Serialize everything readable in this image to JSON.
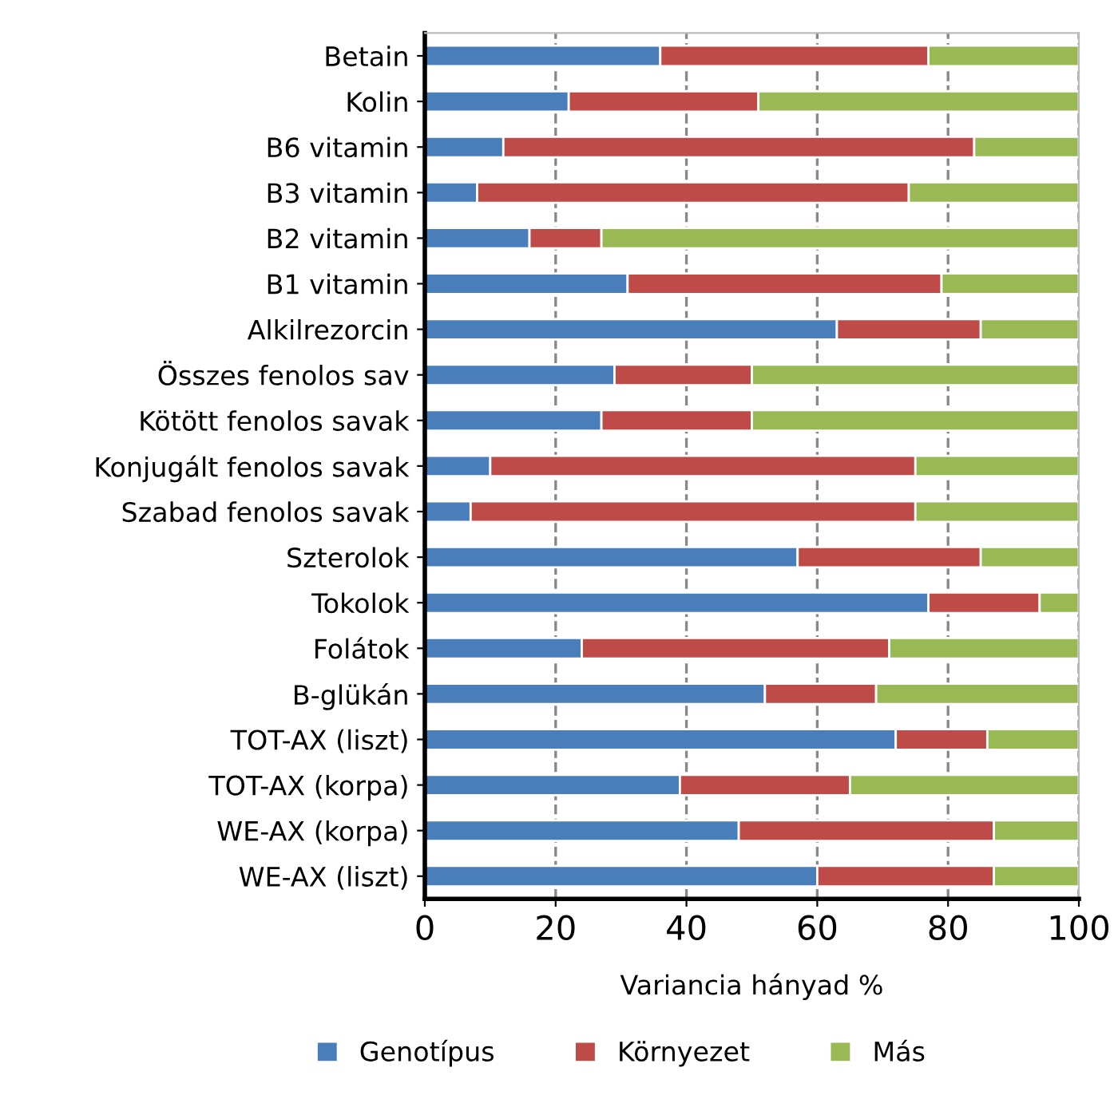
{
  "chart_data": {
    "type": "bar",
    "orientation": "horizontal",
    "stacked": true,
    "xlabel": "Variancia hányad %",
    "categories": [
      "Betain",
      "Kolin",
      "B6 vitamin",
      "B3 vitamin",
      "B2 vitamin",
      "B1 vitamin",
      "Alkilrezorcin",
      "Összes fenolos sav",
      "Kötött fenolos savak",
      "Konjugált fenolos savak",
      "Szabad fenolos savak",
      "Szterolok",
      "Tokolok",
      "Folátok",
      "B-glükán",
      "TOT-AX (liszt)",
      "TOT-AX (korpa)",
      "WE-AX (korpa)",
      "WE-AX (liszt)"
    ],
    "series": [
      {
        "name": "Genotípus",
        "color": "#4a7ebb",
        "values": [
          36,
          22,
          12,
          8,
          16,
          31,
          63,
          29,
          27,
          10,
          7,
          57,
          77,
          24,
          52,
          72,
          39,
          48,
          60
        ]
      },
      {
        "name": "Környezet",
        "color": "#be4b48",
        "values": [
          41,
          29,
          72,
          66,
          11,
          48,
          22,
          21,
          23,
          65,
          68,
          28,
          17,
          47,
          17,
          14,
          26,
          39,
          27
        ]
      },
      {
        "name": "Más",
        "color": "#98b954",
        "values": [
          23,
          49,
          16,
          26,
          73,
          21,
          15,
          50,
          50,
          25,
          25,
          15,
          6,
          29,
          31,
          14,
          35,
          13,
          13
        ]
      }
    ],
    "xlim": [
      0,
      100
    ],
    "xticks": [
      0,
      20,
      40,
      60,
      80,
      100
    ],
    "grid": "x",
    "legend": "bottom"
  }
}
